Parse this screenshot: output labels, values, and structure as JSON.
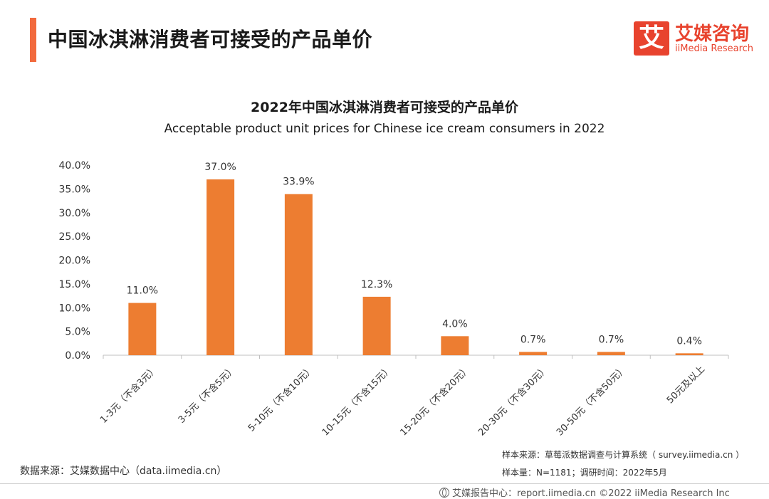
{
  "header": {
    "title": "中国冰淇淋消费者可接受的产品单价",
    "accent_color": "#f26a3d"
  },
  "logo": {
    "mark": "艾",
    "name_cn": "艾媒咨询",
    "name_en": "iiMedia Research",
    "color": "#e8432e"
  },
  "chart_data": {
    "type": "bar",
    "title": "2022年中国冰淇淋消费者可接受的产品单价",
    "subtitle": "Acceptable product unit prices for Chinese ice cream consumers in 2022",
    "categories": [
      "1-3元（不含3元）",
      "3-5元（不含5元）",
      "5-10元（不含10元）",
      "10-15元（不含15元）",
      "15-20元（不含20元）",
      "20-30元（不含30元）",
      "30-50元（不含50元）",
      "50元及以上"
    ],
    "values": [
      11.0,
      37.0,
      33.9,
      12.3,
      4.0,
      0.7,
      0.7,
      0.4
    ],
    "value_labels": [
      "11.0%",
      "37.0%",
      "33.9%",
      "12.3%",
      "4.0%",
      "0.7%",
      "0.7%",
      "0.4%"
    ],
    "yticks": [
      "0.0%",
      "5.0%",
      "10.0%",
      "15.0%",
      "20.0%",
      "25.0%",
      "30.0%",
      "35.0%",
      "40.0%"
    ],
    "ylim": [
      0,
      40
    ],
    "grid": false,
    "bar_color": "#ed7d31"
  },
  "notes": {
    "source": "数据来源：艾媒数据中心（data.iimedia.cn）",
    "sample_source": "样本来源：草莓派数据调查与计算系统（ survey.iimedia.cn ）",
    "sample_size": "样本量：N=1181；调研时间：2022年5月"
  },
  "footer": {
    "icon": "globe-icon",
    "text": "艾媒报告中心：report.iimedia.cn   ©2022  iiMedia Research  Inc"
  }
}
